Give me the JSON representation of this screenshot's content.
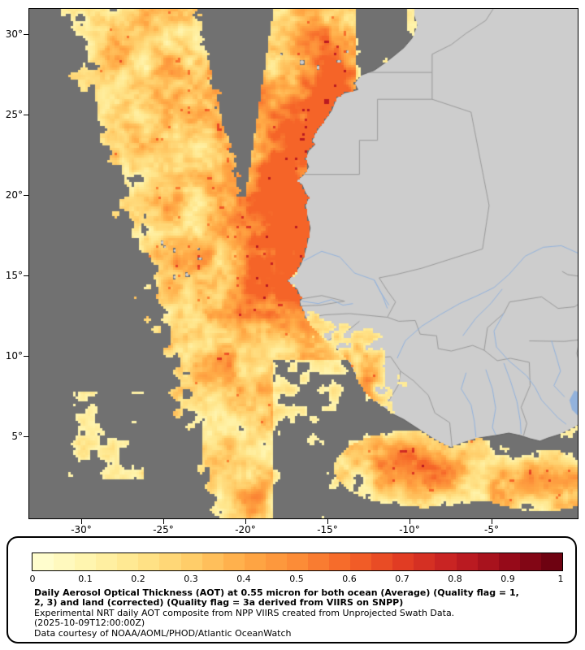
{
  "map": {
    "x_tick_labels": [
      "-30°",
      "-25°",
      "-20°",
      "-15°",
      "-10°",
      "-5°"
    ],
    "y_tick_labels": [
      "30°",
      "25°",
      "20°",
      "15°",
      "10°",
      "5°"
    ],
    "colors": {
      "ocean": "#717171",
      "land": "#CDCDCD",
      "coastline": "#5E5E5E",
      "country_border": "#9A9A9A",
      "river": "#92B2DC",
      "frame": "#000000"
    }
  },
  "colorbar": {
    "min": 0,
    "max": 1,
    "tick_labels": [
      "0",
      "0.1",
      "0.2",
      "0.3",
      "0.4",
      "0.5",
      "0.6",
      "0.7",
      "0.8",
      "0.9",
      "1"
    ],
    "palette": [
      "#FFFFD5",
      "#FFF5AF",
      "#FFE68C",
      "#FFCD69",
      "#FFAA46",
      "#FC8C37",
      "#F56428",
      "#E13C23",
      "#C31E23",
      "#960A19",
      "#64000F"
    ]
  },
  "legend": {
    "title_line1": "Daily Aerosol Optical Thickness (AOT) at 0.55 micron for both ocean (Average) (Quality flag = 1,",
    "title_line2": "2, 3) and land (corrected) (Quality flag = 3a derived from VIIRS on SNPP)",
    "description": "Experimental NRT daily AOT composite from NPP VIIRS created from Unprojected Swath Data.",
    "timestamp": "(2025-10-09T12:00:00Z)",
    "credit": "Data courtesy of NOAA/AOML/PHOD/Atlantic OceanWatch"
  }
}
